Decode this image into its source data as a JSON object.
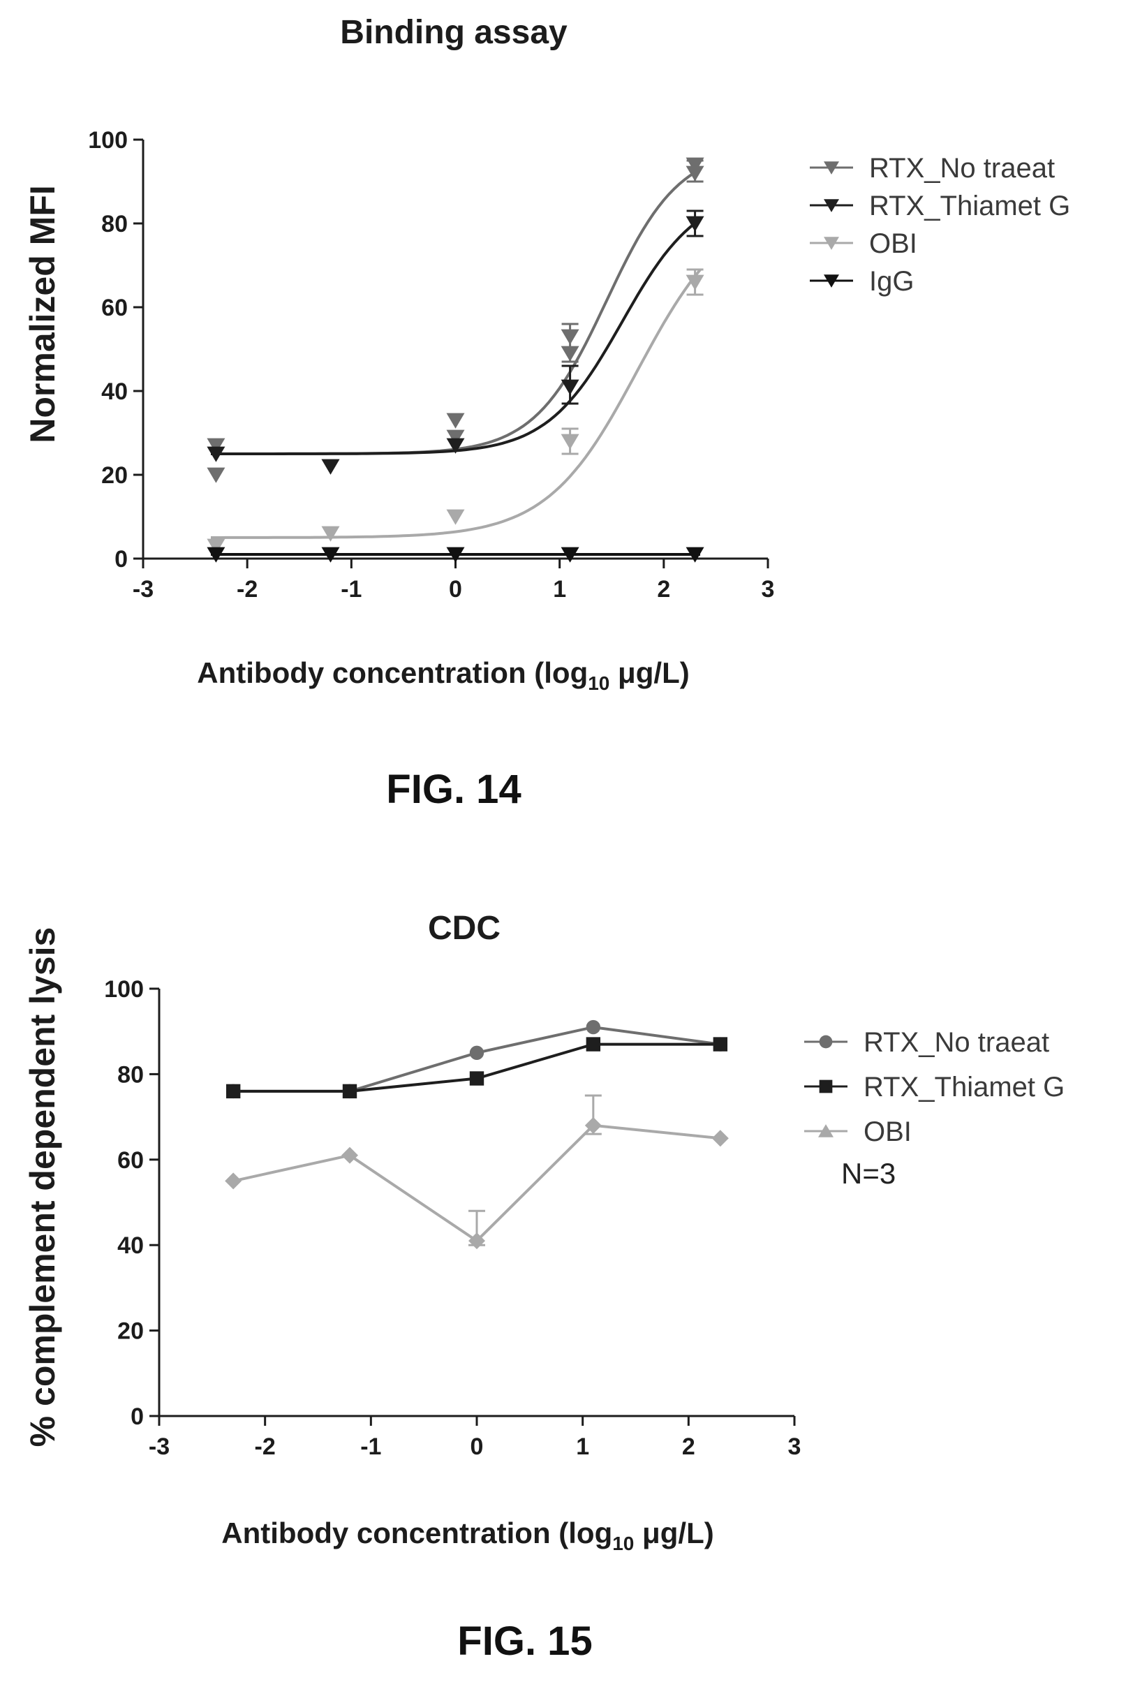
{
  "chart_data": [
    {
      "id": "fig14",
      "type": "scatter",
      "title": "Binding assay",
      "xlabel": "Antibody concentration (log",
      "xlabel_sub": "10",
      "xlabel_end": " μg/L)",
      "ylabel": "Normalized MFI",
      "xlim": [
        -3,
        3
      ],
      "ylim": [
        0,
        100
      ],
      "xticks": [
        "-3",
        "-2",
        "-1",
        "0",
        "1",
        "2",
        "3"
      ],
      "yticks": [
        "0",
        "20",
        "40",
        "60",
        "80",
        "100"
      ],
      "caption": "FIG. 14",
      "legend_position": "right",
      "series": [
        {
          "name": "RTX_No traeat",
          "color": "#6e6e6e",
          "marker": "triangle-down",
          "x": [
            -2.3,
            -2.3,
            -1.2,
            0,
            0,
            1.1,
            1.1,
            2.3,
            2.3
          ],
          "y": [
            27,
            20,
            22,
            33,
            29,
            49,
            53,
            92,
            94
          ],
          "errors": [
            {
              "x": 1.1,
              "low": 47,
              "high": 56
            },
            {
              "x": 2.3,
              "low": 90,
              "high": 95
            }
          ],
          "curve": {
            "bottom": 25,
            "top": 98,
            "ec50": 1.45,
            "hill": 1.25
          }
        },
        {
          "name": "RTX_Thiamet G",
          "color": "#1e1e1e",
          "marker": "triangle-down",
          "x": [
            -2.3,
            -1.2,
            0,
            1.1,
            2.3
          ],
          "y": [
            25,
            22,
            27,
            41,
            80
          ],
          "errors": [
            {
              "x": 1.1,
              "low": 37,
              "high": 46
            },
            {
              "x": 2.3,
              "low": 77,
              "high": 83
            }
          ],
          "curve": {
            "bottom": 25,
            "top": 88,
            "ec50": 1.6,
            "hill": 1.2
          }
        },
        {
          "name": "OBI",
          "color": "#a9a9a9",
          "marker": "triangle-down",
          "x": [
            -2.3,
            -1.2,
            0,
            1.1,
            2.3
          ],
          "y": [
            3,
            6,
            10,
            28,
            66
          ],
          "errors": [
            {
              "x": 1.1,
              "low": 25,
              "high": 31
            },
            {
              "x": 2.3,
              "low": 63,
              "high": 69
            }
          ],
          "curve": {
            "bottom": 5,
            "top": 85,
            "ec50": 1.75,
            "hill": 1.0
          }
        },
        {
          "name": "IgG",
          "color": "#111111",
          "marker": "triangle-down",
          "x": [
            -2.3,
            -1.2,
            0,
            1.1,
            2.3
          ],
          "y": [
            1,
            1,
            1,
            1,
            1
          ],
          "errors": [],
          "curve": {
            "bottom": 1,
            "top": 1,
            "ec50": 1,
            "hill": 1
          }
        }
      ]
    },
    {
      "id": "fig15",
      "type": "line",
      "title": "CDC",
      "xlabel": "Antibody concentration (log",
      "xlabel_sub": "10",
      "xlabel_end": " μg/L)",
      "ylabel": "% complement dependent lysis",
      "xlim": [
        -3,
        3
      ],
      "ylim": [
        0,
        100
      ],
      "xticks": [
        "-3",
        "-2",
        "-1",
        "0",
        "1",
        "2",
        "3"
      ],
      "yticks": [
        "0",
        "20",
        "40",
        "60",
        "80",
        "100"
      ],
      "caption": "FIG. 15",
      "note": "N=3",
      "legend_position": "right",
      "series": [
        {
          "name": "RTX_No traeat",
          "color": "#6e6e6e",
          "marker": "circle",
          "x": [
            -2.3,
            -1.2,
            0,
            1.1,
            2.3
          ],
          "y": [
            76,
            76,
            85,
            91,
            87
          ],
          "errors": []
        },
        {
          "name": "RTX_Thiamet G",
          "color": "#1e1e1e",
          "marker": "square",
          "x": [
            -2.3,
            -1.2,
            0,
            1.1,
            2.3
          ],
          "y": [
            76,
            76,
            79,
            87,
            87
          ],
          "errors": []
        },
        {
          "name": "OBI",
          "color": "#a9a9a9",
          "marker": "triangle-up",
          "point_marker": "diamond",
          "x": [
            -2.3,
            -1.2,
            0,
            1.1,
            2.3
          ],
          "y": [
            55,
            61,
            41,
            68,
            65
          ],
          "errors": [
            {
              "x": 0,
              "low": 40,
              "high": 48
            },
            {
              "x": 1.1,
              "low": 66,
              "high": 75
            }
          ]
        }
      ]
    }
  ]
}
